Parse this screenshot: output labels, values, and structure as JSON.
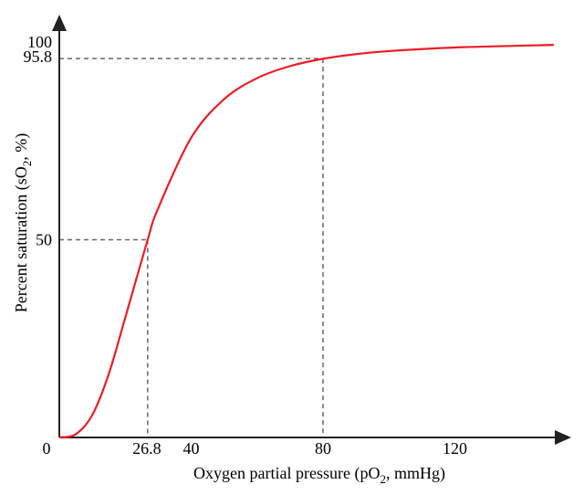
{
  "chart_data": {
    "type": "line",
    "xlabel": "Oxygen partial pressure (pO",
    "xlabel_sub": "2",
    "xlabel_tail": ", mmHg)",
    "ylabel": "Percent saturation (sO",
    "ylabel_sub": "2",
    "ylabel_tail": ", %)",
    "xlim": [
      0,
      154
    ],
    "ylim": [
      0,
      104
    ],
    "x_ticks": [
      {
        "value": 0,
        "label": "0"
      },
      {
        "value": 26.8,
        "label": "26.8"
      },
      {
        "value": 40,
        "label": "40"
      },
      {
        "value": 80,
        "label": "80"
      },
      {
        "value": 120,
        "label": "120"
      }
    ],
    "y_ticks": [
      {
        "value": 50,
        "label": "50"
      },
      {
        "value": 95.8,
        "label": "95.8"
      },
      {
        "value": 100,
        "label": "100"
      }
    ],
    "reference_lines": [
      {
        "x": 26.8,
        "y": 50
      },
      {
        "x": 80,
        "y": 95.8
      }
    ],
    "grid": false,
    "series": [
      {
        "color": "#ed1c24",
        "x": [
          0,
          5,
          10,
          15,
          20,
          26.8,
          30,
          40,
          50,
          60,
          70,
          80,
          90,
          100,
          120,
          150
        ],
        "y": [
          0,
          0.83,
          5.68,
          16.06,
          30.28,
          50,
          57.97,
          75.79,
          85.54,
          90.86,
          93.91,
          95.76,
          96.93,
          97.71,
          98.62,
          99.27
        ]
      }
    ]
  }
}
